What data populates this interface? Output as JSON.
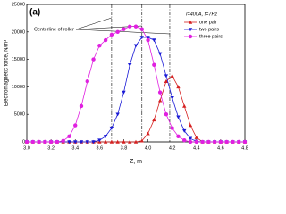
{
  "chart_data": {
    "type": "line",
    "title": "(a)",
    "annotation": "I=400A, f=7Hz",
    "centerline_label": "Centerline of roller",
    "centerlines": [
      3.7,
      3.95,
      4.18
    ],
    "x_label": "Z, m",
    "y_label": "Electromagnetic force, N/m³",
    "x": [
      3.0,
      3.05,
      3.1,
      3.15,
      3.2,
      3.25,
      3.3,
      3.35,
      3.4,
      3.45,
      3.5,
      3.55,
      3.6,
      3.65,
      3.7,
      3.75,
      3.8,
      3.85,
      3.9,
      3.95,
      4.0,
      4.05,
      4.1,
      4.15,
      4.2,
      4.25,
      4.3,
      4.35,
      4.4,
      4.45,
      4.5,
      4.55,
      4.6,
      4.65,
      4.7,
      4.75,
      4.8
    ],
    "series": [
      {
        "name": "one pair",
        "color": "#d62020",
        "marker": "triangle-up",
        "values": [
          0,
          0,
          0,
          0,
          0,
          0,
          0,
          0,
          0,
          0,
          0,
          0,
          0,
          0,
          0,
          0,
          0,
          0,
          0,
          200,
          1500,
          4000,
          7500,
          11000,
          12000,
          10000,
          6500,
          3000,
          800,
          0,
          0,
          0,
          0,
          0,
          0,
          0,
          0
        ]
      },
      {
        "name": "two pairs",
        "color": "#1a1ad6",
        "marker": "triangle-down",
        "values": [
          0,
          0,
          0,
          0,
          0,
          0,
          0,
          0,
          0,
          0,
          0,
          0,
          300,
          1000,
          2500,
          5000,
          9000,
          14000,
          17500,
          19000,
          19000,
          18500,
          16000,
          12000,
          8000,
          4500,
          2000,
          600,
          100,
          0,
          0,
          0,
          0,
          0,
          0,
          0,
          0
        ]
      },
      {
        "name": "three pairs",
        "color": "#e020e0",
        "marker": "circle",
        "values": [
          0,
          0,
          0,
          0,
          0,
          0,
          200,
          1000,
          3000,
          6500,
          11000,
          15000,
          17500,
          18500,
          19500,
          20000,
          20500,
          21000,
          21000,
          20500,
          18500,
          14000,
          9000,
          5000,
          2500,
          1000,
          300,
          0,
          0,
          0,
          0,
          0,
          0,
          0,
          0,
          0,
          0
        ]
      }
    ],
    "xlim": [
      3.0,
      4.8
    ],
    "xticks": [
      {
        "value": 3.0,
        "label": "3.0"
      },
      3.2,
      3.4,
      3.6,
      3.8,
      {
        "value": 4.0,
        "label": "4.0"
      },
      4.2,
      4.4,
      4.6,
      4.8
    ],
    "ylim": [
      0,
      25000
    ],
    "yticks": [
      0,
      5000,
      10000,
      15000,
      20000,
      25000
    ],
    "legend": "upper right"
  }
}
